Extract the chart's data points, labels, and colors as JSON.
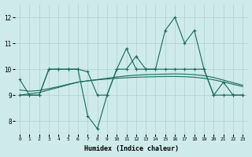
{
  "xlabel": "Humidex (Indice chaleur)",
  "xlim": [
    -0.5,
    23.5
  ],
  "ylim": [
    7.5,
    12.5
  ],
  "yticks": [
    8,
    9,
    10,
    11,
    12
  ],
  "xticks": [
    0,
    1,
    2,
    3,
    4,
    5,
    6,
    7,
    8,
    9,
    10,
    11,
    12,
    13,
    14,
    15,
    16,
    17,
    18,
    19,
    20,
    21,
    22,
    23
  ],
  "background_color": "#ceeaea",
  "grid_color": "#b0d0d0",
  "line_color": "#1a6b5a",
  "line1": [
    9.6,
    9.0,
    9.0,
    10.0,
    10.0,
    10.0,
    10.0,
    9.9,
    9.0,
    9.0,
    10.0,
    10.8,
    10.0,
    10.0,
    10.0,
    11.5,
    12.0,
    11.0,
    11.5,
    10.0,
    9.0,
    9.5,
    9.0,
    9.0
  ],
  "line2": [
    9.0,
    9.0,
    9.0,
    10.0,
    10.0,
    10.0,
    10.0,
    8.2,
    7.7,
    9.0,
    10.0,
    10.0,
    10.5,
    10.0,
    10.0,
    10.0,
    10.0,
    10.0,
    10.0,
    10.0,
    9.0,
    9.0,
    9.0,
    9.0
  ],
  "line3": [
    9.0,
    9.05,
    9.1,
    9.2,
    9.3,
    9.4,
    9.5,
    9.55,
    9.6,
    9.65,
    9.7,
    9.74,
    9.77,
    9.79,
    9.8,
    9.81,
    9.82,
    9.81,
    9.79,
    9.75,
    9.68,
    9.58,
    9.48,
    9.38
  ],
  "line4": [
    9.2,
    9.15,
    9.18,
    9.25,
    9.33,
    9.42,
    9.5,
    9.55,
    9.59,
    9.62,
    9.65,
    9.67,
    9.69,
    9.7,
    9.71,
    9.72,
    9.72,
    9.71,
    9.69,
    9.65,
    9.59,
    9.51,
    9.42,
    9.33
  ]
}
